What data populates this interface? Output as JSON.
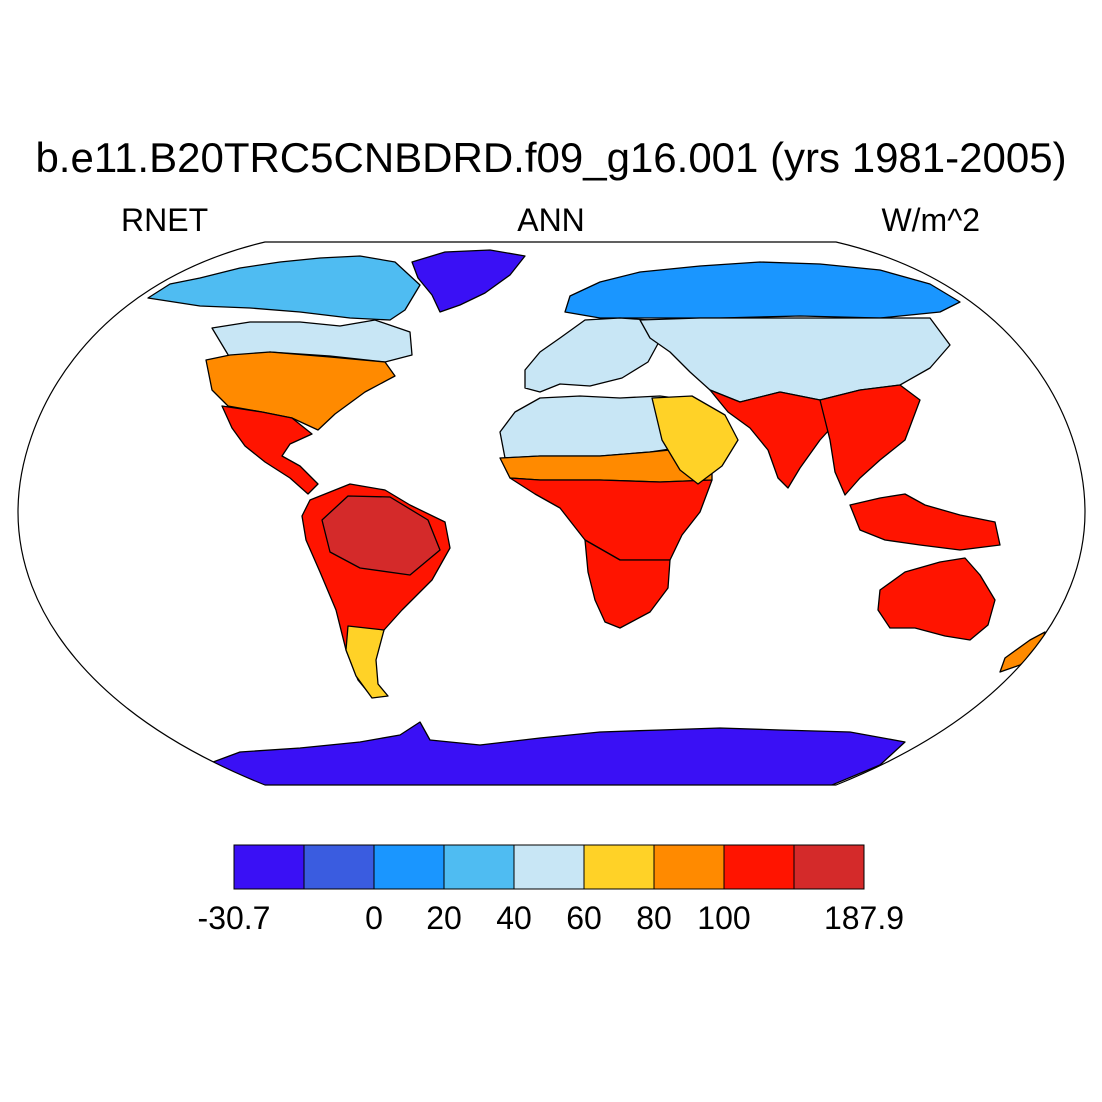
{
  "title": "b.e11.B20TRC5CNBDRD.f09_g16.001 (yrs 1981-2005)",
  "left_label": "RNET",
  "center_label": "ANN",
  "right_label": "W/m^2",
  "colorbar": {
    "colors": [
      "#3a10f5",
      "#3a5ce0",
      "#1a96ff",
      "#4fbcf2",
      "#c8e6f5",
      "#ffd227",
      "#ff8a00",
      "#ff1400",
      "#d42a2a"
    ],
    "labels": [
      "-30.7",
      "",
      "0",
      "20",
      "40",
      "60",
      "80",
      "100",
      "",
      "187.9"
    ]
  },
  "map": {
    "projection": "Robinson",
    "field": "RNET",
    "season": "ANN",
    "units": "W/m^2",
    "ocean_color": "#ffffff",
    "regions": [
      {
        "name": "antarctica",
        "level": 0
      },
      {
        "name": "greenland",
        "level": 0
      },
      {
        "name": "arctic-canada",
        "level": 3
      },
      {
        "name": "north-siberia",
        "level": 2
      },
      {
        "name": "canada-south",
        "level": 4
      },
      {
        "name": "usa",
        "level": 6
      },
      {
        "name": "mexico-central-america",
        "level": 7
      },
      {
        "name": "south-america",
        "level": 7
      },
      {
        "name": "amazon",
        "level": 8
      },
      {
        "name": "patagonia",
        "level": 5
      },
      {
        "name": "europe",
        "level": 4
      },
      {
        "name": "sahara",
        "level": 4
      },
      {
        "name": "sahel",
        "level": 6
      },
      {
        "name": "central-africa",
        "level": 7
      },
      {
        "name": "southern-africa",
        "level": 7
      },
      {
        "name": "arabia",
        "level": 5
      },
      {
        "name": "central-asia",
        "level": 4
      },
      {
        "name": "south-asia",
        "level": 7
      },
      {
        "name": "southeast-asia",
        "level": 7
      },
      {
        "name": "maritime-continent",
        "level": 7
      },
      {
        "name": "australia",
        "level": 7
      },
      {
        "name": "new-zealand",
        "level": 6
      }
    ]
  }
}
